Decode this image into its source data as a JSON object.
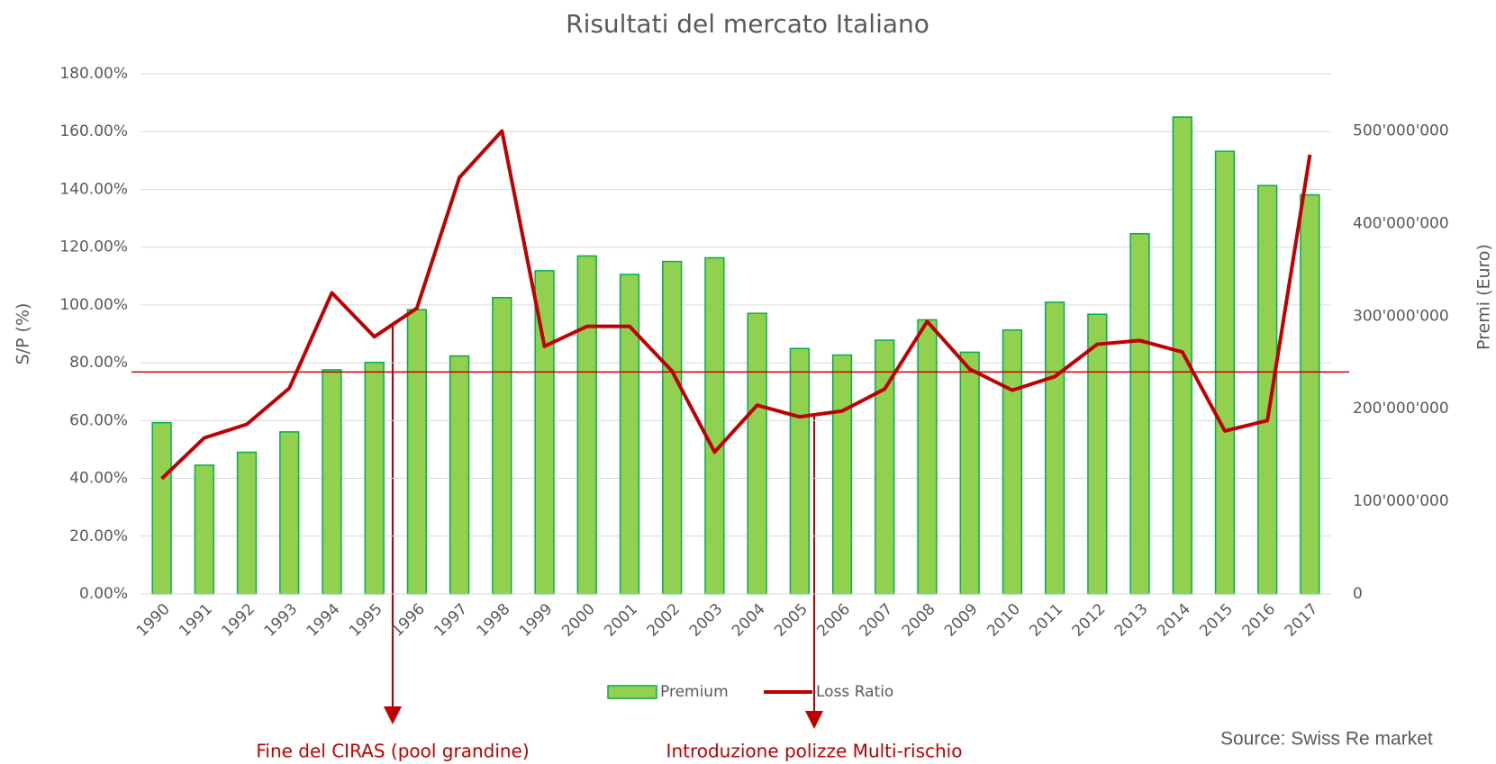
{
  "chart_data": {
    "type": "bar_line",
    "title": "Risultati del mercato Italiano",
    "y_label": "S/P (%)",
    "y2_label": "Premi (Euro)",
    "categories": [
      "1990",
      "1991",
      "1992",
      "1993",
      "1994",
      "1995",
      "1996",
      "1997",
      "1998",
      "1999",
      "2000",
      "2001",
      "2002",
      "2003",
      "2004",
      "2005",
      "2006",
      "2007",
      "2008",
      "2009",
      "2010",
      "2011",
      "2012",
      "2013",
      "2014",
      "2015",
      "2016",
      "2017"
    ],
    "series": [
      {
        "name": "Premium",
        "type": "bar",
        "axis": "y2",
        "color": "#92d050",
        "edge_color": "#00b050",
        "values": [
          185000000,
          139000000,
          153000000,
          175000000,
          242000000,
          250000000,
          307000000,
          257000000,
          320000000,
          349000000,
          365000000,
          345000000,
          359000000,
          363000000,
          303000000,
          265000000,
          258000000,
          274000000,
          296000000,
          261000000,
          285000000,
          315000000,
          302000000,
          389000000,
          515000000,
          478000000,
          441000000,
          431000000
        ]
      },
      {
        "name": "Loss Ratio",
        "type": "line",
        "axis": "y",
        "color": "#c00000",
        "values": [
          39.9,
          54,
          58.7,
          71.2,
          104.2,
          89,
          98.9,
          144.1,
          160.2,
          85.7,
          92.6,
          92.6,
          77.1,
          49.1,
          65.3,
          61.3,
          63.3,
          70.9,
          94.3,
          77.8,
          70.5,
          75.2,
          86.4,
          87.7,
          83.7,
          56.4,
          60,
          152
        ]
      }
    ],
    "ylim": [
      0,
      180
    ],
    "yticks": [
      {
        "value": 0,
        "label": "0.00%"
      },
      {
        "value": 20,
        "label": "20.00%"
      },
      {
        "value": 40,
        "label": "40.00%"
      },
      {
        "value": 60,
        "label": "60.00%"
      },
      {
        "value": 80,
        "label": "80.00%"
      },
      {
        "value": 100,
        "label": "100.00%"
      },
      {
        "value": 120,
        "label": "120.00%"
      },
      {
        "value": 140,
        "label": "140.00%"
      },
      {
        "value": 160,
        "label": "160.00%"
      },
      {
        "value": 180,
        "label": "180.00%"
      }
    ],
    "y2lim": [
      0,
      561700000
    ],
    "y2ticks": [
      0,
      {
        "value": 100000000,
        "label": "100'000'000"
      },
      {
        "value": 200000000,
        "label": "200'000'000"
      },
      {
        "value": 300000000,
        "label": "300'000'000"
      },
      {
        "value": 400000000,
        "label": "400'000'000"
      },
      {
        "value": 500000000,
        "label": "500'000'000"
      }
    ],
    "reference_line": {
      "value": 76.8,
      "color": "#c00000"
    },
    "grid": true,
    "legend": "bottom",
    "annotations": [
      "Fine del CIRAS (pool grandine)",
      "Introduzione polizze Multi-rischio"
    ],
    "source": "Source: Swiss Re market"
  }
}
